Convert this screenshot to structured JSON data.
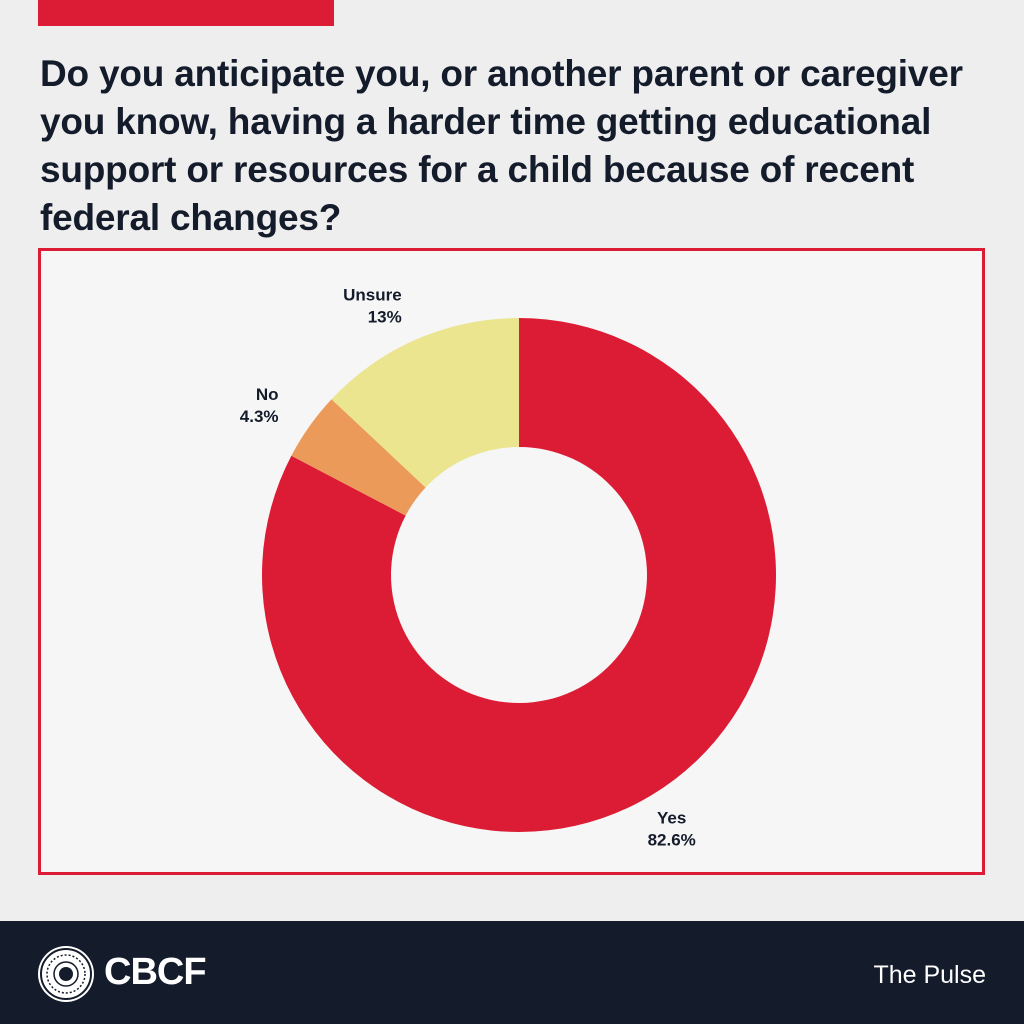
{
  "colors": {
    "accent": "#dc1c35",
    "background": "#eeeeee",
    "footer": "#141b2b",
    "text": "#141b2b"
  },
  "question": "Do you anticipate you, or another parent or caregiver you know, having a harder time getting educational support or resources for a child because of recent federal changes?",
  "chart_data": {
    "type": "pie",
    "style": "donut",
    "title": "",
    "categories": [
      "Yes",
      "No",
      "Unsure"
    ],
    "values": [
      82.6,
      4.3,
      13
    ],
    "labels": [
      "82.6%",
      "4.3%",
      "13%"
    ],
    "colors": [
      "#dc1c35",
      "#ec9a5a",
      "#eae58e"
    ],
    "legend": "none"
  },
  "footer": {
    "logo_icon": "cbcf-seal-icon",
    "logo_text": "CBCF",
    "series_name": "The Pulse"
  }
}
